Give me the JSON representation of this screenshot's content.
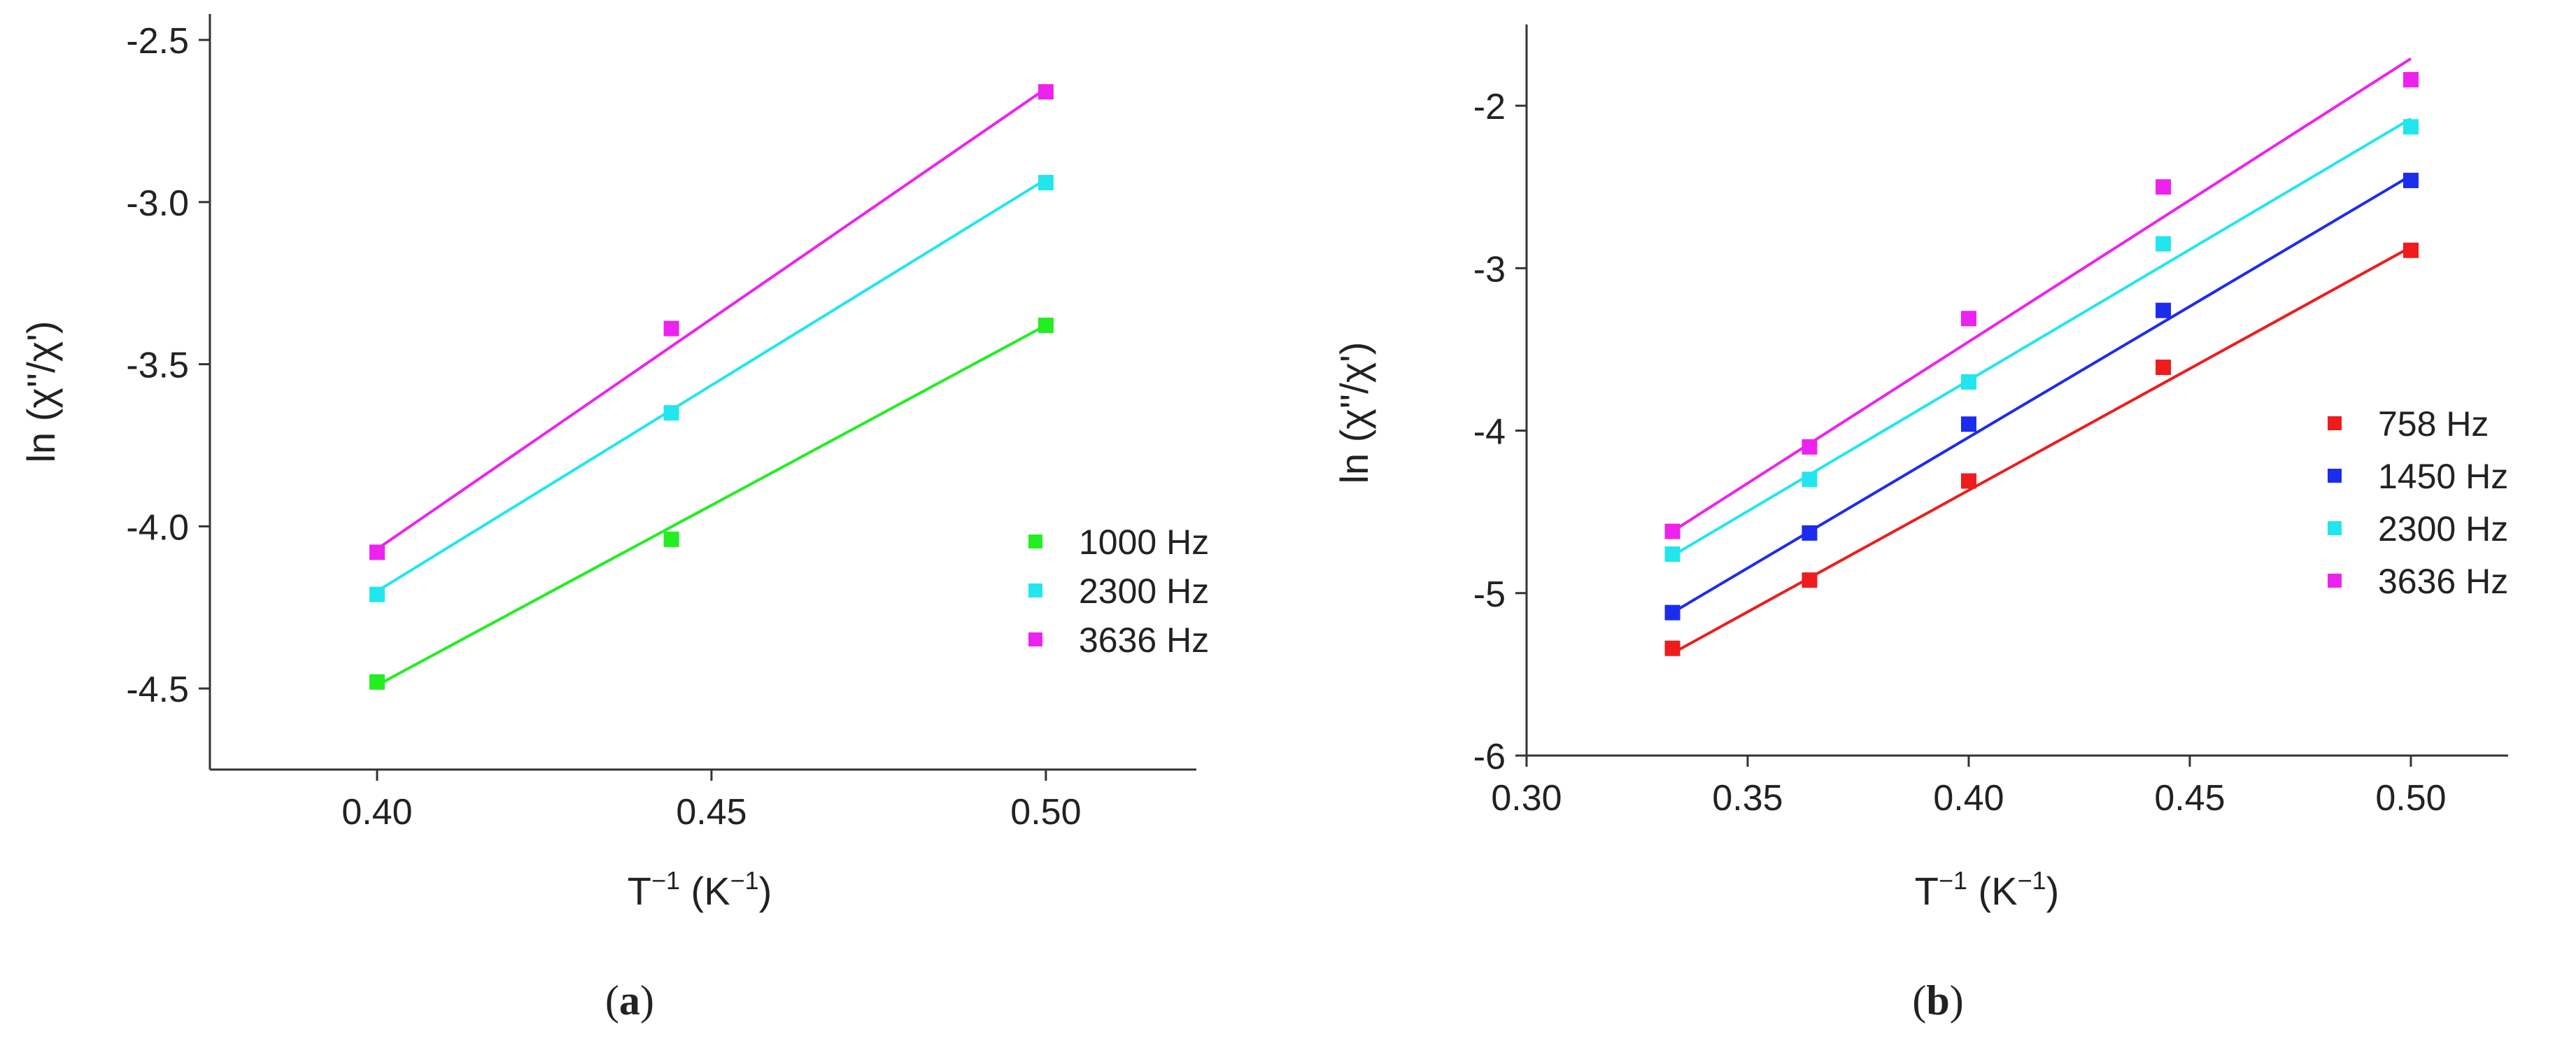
{
  "chart_data": [
    {
      "type": "scatter",
      "panel_label": "(a)",
      "panel_letter": "a",
      "xlabel": "T",
      "xlabel_sup": "−1",
      "xlabel_unit_open": " (K",
      "xlabel_unit_sup": "−1",
      "xlabel_unit_close": ")",
      "ylabel": "ln (χ''/χ')",
      "xlim": [
        0.375,
        0.5225
      ],
      "ylim": [
        -4.75,
        -2.42
      ],
      "xticks": [
        0.4,
        0.45,
        0.5
      ],
      "xtick_labels": [
        "0.40",
        "0.45",
        "0.50"
      ],
      "yticks": [
        -4.5,
        -4.0,
        -3.5,
        -3.0,
        -2.5
      ],
      "ytick_labels": [
        "-4.5",
        "-4.0",
        "-3.5",
        "-3.0",
        "-2.5"
      ],
      "legend_position": "center-right",
      "fit_lines": true,
      "series": [
        {
          "name": "1000 Hz",
          "color": "#22ee22",
          "x": [
            0.4,
            0.444,
            0.5
          ],
          "y": [
            -4.48,
            -4.04,
            -3.38
          ],
          "fit": [
            [
              0.4,
              -4.49
            ],
            [
              0.5,
              -3.38
            ]
          ]
        },
        {
          "name": "2300 Hz",
          "color": "#22e6ee",
          "x": [
            0.4,
            0.444,
            0.5
          ],
          "y": [
            -4.21,
            -3.65,
            -2.94
          ],
          "fit": [
            [
              0.4,
              -4.2
            ],
            [
              0.5,
              -2.93
            ]
          ]
        },
        {
          "name": "3636 Hz",
          "color": "#ee22ee",
          "x": [
            0.4,
            0.444,
            0.5
          ],
          "y": [
            -4.08,
            -3.39,
            -2.66
          ],
          "fit": [
            [
              0.4,
              -4.07
            ],
            [
              0.5,
              -2.65
            ]
          ]
        }
      ]
    },
    {
      "type": "scatter",
      "panel_label": "(b)",
      "panel_letter": "b",
      "xlabel": "T",
      "xlabel_sup": "−1",
      "xlabel_unit_open": " (K",
      "xlabel_unit_sup": "−1",
      "xlabel_unit_close": ")",
      "ylabel": "ln (χ''/χ')",
      "xlim": [
        0.3,
        0.522
      ],
      "ylim": [
        -6.0,
        -1.5
      ],
      "xticks": [
        0.3,
        0.35,
        0.4,
        0.45,
        0.5
      ],
      "xtick_labels": [
        "0.30",
        "0.35",
        "0.40",
        "0.45",
        "0.50"
      ],
      "yticks": [
        -6,
        -5,
        -4,
        -3,
        -2
      ],
      "ytick_labels": [
        "-6",
        "-5",
        "-4",
        "-3",
        "-2"
      ],
      "legend_position": "center-right",
      "fit_lines": true,
      "series": [
        {
          "name": "758 Hz",
          "color": "#ee1c1c",
          "x": [
            0.333,
            0.364,
            0.4,
            0.444,
            0.5
          ],
          "y": [
            -5.34,
            -4.92,
            -4.31,
            -3.61,
            -2.89
          ],
          "fit": [
            [
              0.333,
              -5.37
            ],
            [
              0.5,
              -2.87
            ]
          ]
        },
        {
          "name": "1450 Hz",
          "color": "#1c2cee",
          "x": [
            0.333,
            0.364,
            0.4,
            0.444,
            0.5
          ],
          "y": [
            -5.12,
            -4.63,
            -3.96,
            -3.26,
            -2.46
          ],
          "fit": [
            [
              0.333,
              -5.12
            ],
            [
              0.5,
              -2.43
            ]
          ]
        },
        {
          "name": "2300 Hz",
          "color": "#22e6ee",
          "x": [
            0.333,
            0.364,
            0.4,
            0.444,
            0.5
          ],
          "y": [
            -4.76,
            -4.3,
            -3.7,
            -2.85,
            -2.13
          ],
          "fit": [
            [
              0.333,
              -4.77
            ],
            [
              0.5,
              -2.08
            ]
          ]
        },
        {
          "name": "3636 Hz",
          "color": "#ee22ee",
          "x": [
            0.333,
            0.364,
            0.4,
            0.444,
            0.5
          ],
          "y": [
            -4.62,
            -4.1,
            -3.31,
            -2.5,
            -1.84
          ],
          "fit": [
            [
              0.333,
              -4.62
            ],
            [
              0.5,
              -1.71
            ]
          ]
        }
      ]
    }
  ]
}
